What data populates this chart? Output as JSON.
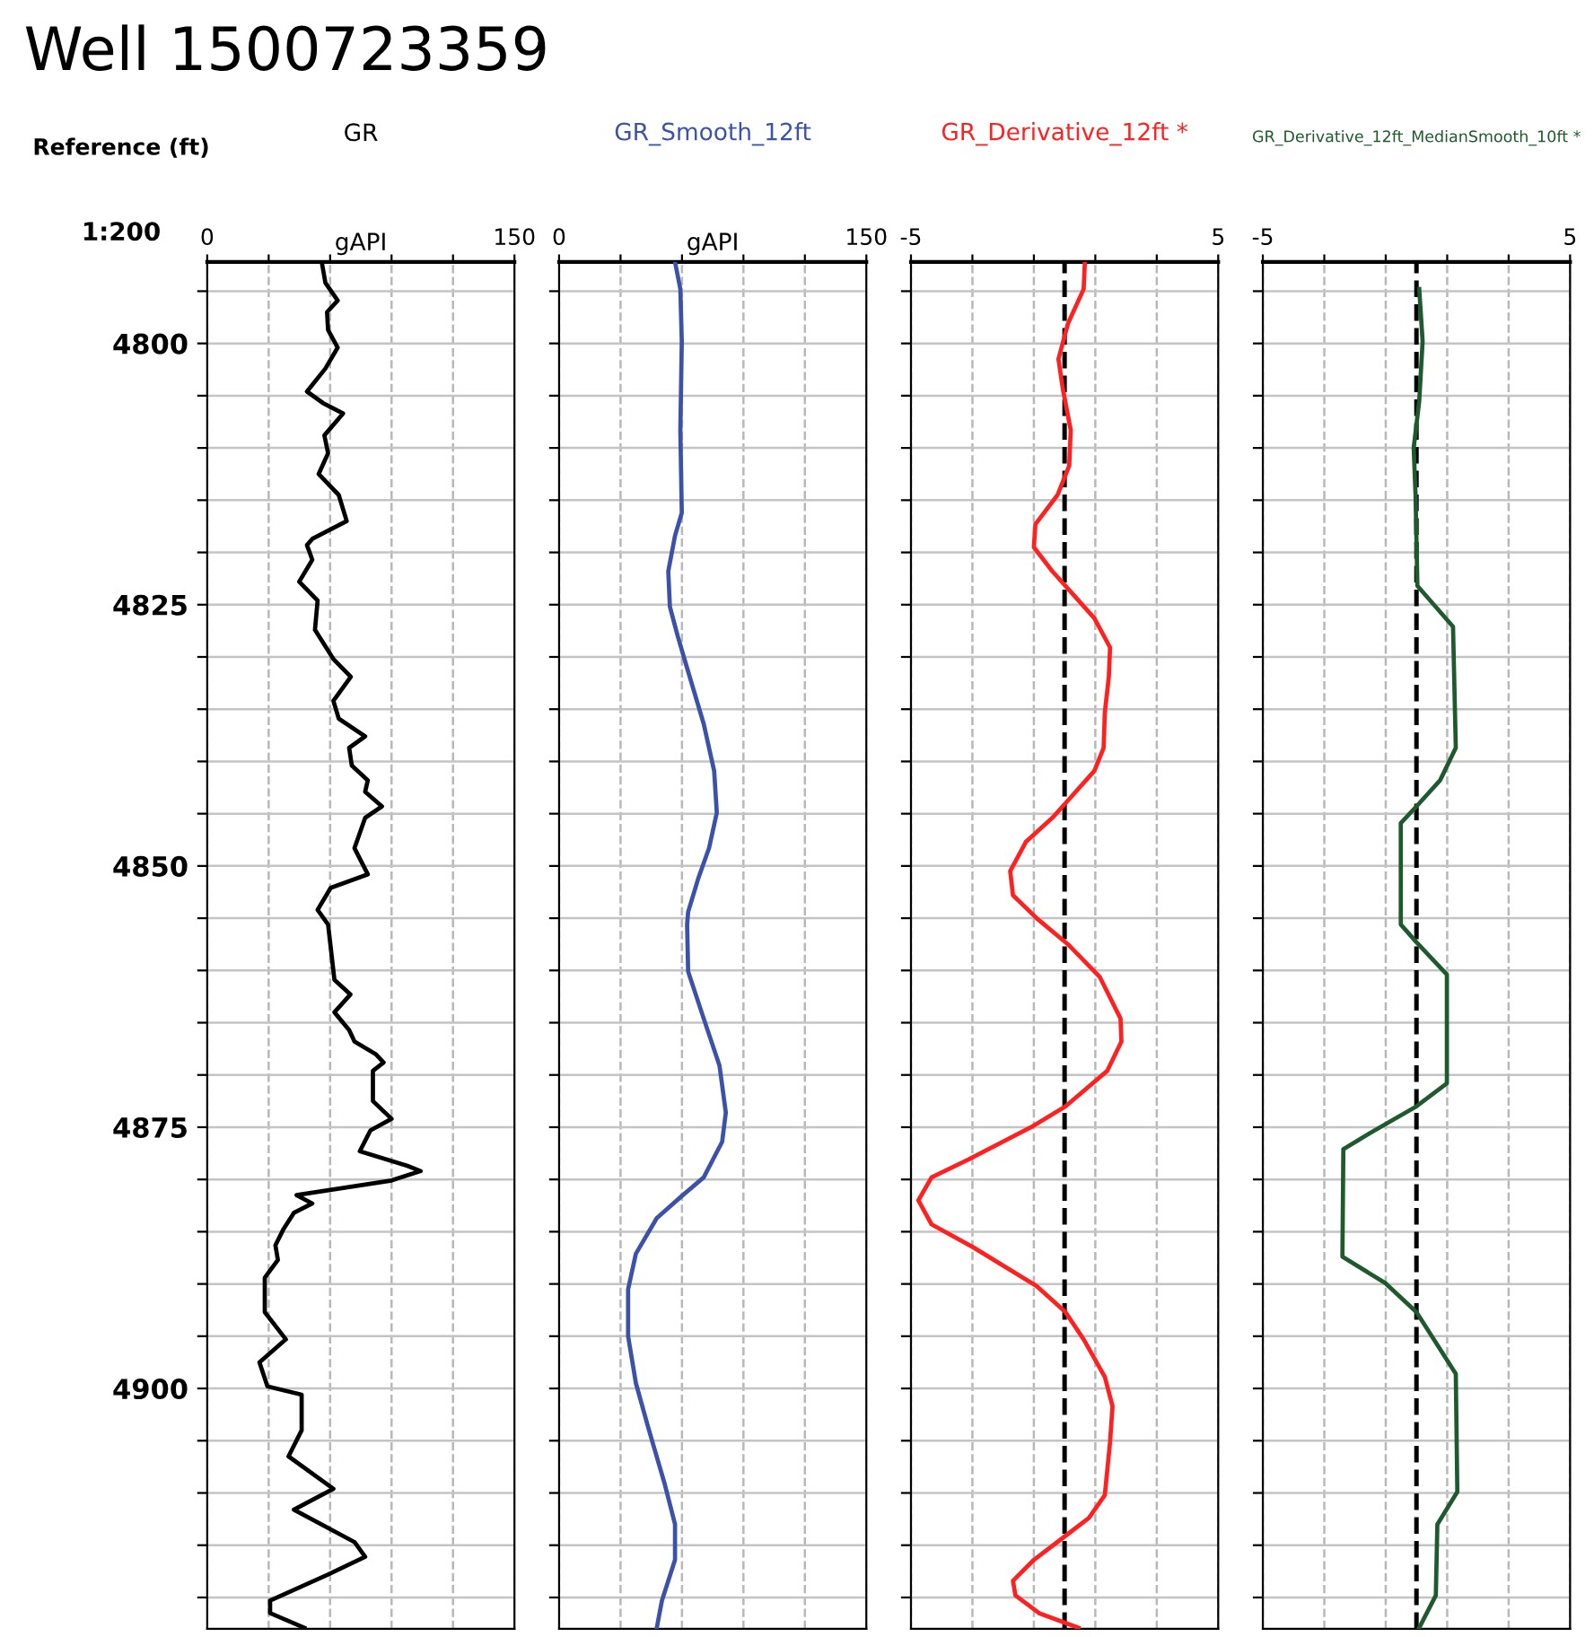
{
  "chart_data": [
    {
      "type": "line",
      "title": "Well 1500723359",
      "ylabel": "Reference (ft)",
      "xlabel": "gAPI",
      "annotations": [
        "1:200"
      ],
      "xlim": [
        0,
        150
      ],
      "xticks": [
        0,
        {
          "value": 30,
          "label": null
        },
        {
          "value": 60,
          "label": null
        },
        {
          "value": 90,
          "label": null
        },
        {
          "value": 120,
          "label": null
        },
        150
      ],
      "ylim": [
        4923,
        4792.2
      ],
      "yticks": [
        {
          "value": 4795,
          "label": null
        },
        4800,
        {
          "value": 4805,
          "label": null
        },
        {
          "value": 4810,
          "label": null
        },
        {
          "value": 4815,
          "label": null
        },
        {
          "value": 4820,
          "label": null
        },
        4825,
        {
          "value": 4830,
          "label": null
        },
        {
          "value": 4835,
          "label": null
        },
        {
          "value": 4840,
          "label": null
        },
        {
          "value": 4845,
          "label": null
        },
        4850,
        {
          "value": 4855,
          "label": null
        },
        {
          "value": 4860,
          "label": null
        },
        {
          "value": 4865,
          "label": null
        },
        {
          "value": 4870,
          "label": null
        },
        4875,
        {
          "value": 4880,
          "label": null
        },
        {
          "value": 4885,
          "label": null
        },
        {
          "value": 4890,
          "label": null
        },
        {
          "value": 4895,
          "label": null
        },
        4900,
        {
          "value": 4905,
          "label": null
        },
        {
          "value": 4910,
          "label": null
        },
        {
          "value": 4915,
          "label": null
        },
        {
          "value": 4920,
          "label": null
        }
      ],
      "grid": true,
      "legend": false,
      "series": [
        {
          "name": "GR",
          "color": "#000000",
          "x": [
            55.9,
            57.7,
            63.7,
            58.5,
            59.0,
            63.7,
            57.7,
            48.7,
            56.5,
            66.3,
            57.2,
            59.0,
            54.4,
            64.2,
            68.1,
            51.3,
            48.7,
            51.3,
            44.9,
            53.9,
            52.6,
            61.6,
            70.1,
            61.6,
            64.2,
            77.1,
            69.3,
            70.6,
            78.4,
            77.1,
            85.3,
            77.1,
            71.9,
            78.4,
            60.3,
            53.9,
            59.0,
            60.3,
            62.1,
            69.9,
            62.1,
            69.3,
            71.9,
            82.2,
            86.1,
            80.9,
            80.9,
            90.0,
            79.7,
            74.5,
            97.7,
            104.2,
            90.0,
            43.6,
            51.3,
            42.3,
            37.1,
            33.3,
            34.5,
            28.1,
            28.1,
            38.4,
            25.5,
            29.4,
            46.1,
            46.1,
            39.7,
            61.6,
            42.3,
            71.9,
            77.1,
            59.0,
            30.7,
            30.7,
            47.4
          ],
          "values": [
            4792.2,
            4794.2,
            4795.9,
            4797.0,
            4798.7,
            4800.4,
            4802.4,
            4804.6,
            4805.7,
            4806.7,
            4808.8,
            4810.5,
            4812.5,
            4814.5,
            4817.0,
            4818.7,
            4819.3,
            4820.7,
            4822.8,
            4824.6,
            4827.4,
            4830.2,
            4831.9,
            4834.2,
            4835.9,
            4837.6,
            4838.7,
            4840.4,
            4841.8,
            4842.9,
            4844.3,
            4845.4,
            4848.3,
            4850.8,
            4852.1,
            4854.2,
            4855.6,
            4857.8,
            4860.9,
            4862.3,
            4864.0,
            4865.7,
            4866.8,
            4868.0,
            4868.8,
            4869.6,
            4872.5,
            4874.2,
            4875.3,
            4877.3,
            4878.7,
            4879.2,
            4880.1,
            4881.5,
            4882.3,
            4883.2,
            4884.8,
            4886.3,
            4887.7,
            4889.4,
            4892.7,
            4895.3,
            4897.5,
            4899.8,
            4900.6,
            4904.0,
            4906.5,
            4909.6,
            4911.6,
            4914.7,
            4916.1,
            4917.8,
            4920.3,
            4921.5,
            4922.9
          ]
        }
      ]
    },
    {
      "type": "line",
      "xlabel": "gAPI",
      "tick_labels": "x",
      "xlim": [
        0,
        150
      ],
      "xticks": [
        0,
        {
          "value": 30,
          "label": null
        },
        {
          "value": 60,
          "label": null
        },
        {
          "value": 90,
          "label": null
        },
        {
          "value": 120,
          "label": null
        },
        150
      ],
      "ylim": [
        4923,
        4792.2
      ],
      "yticks": [
        {
          "value": 4795,
          "label": null
        },
        4800,
        {
          "value": 4805,
          "label": null
        },
        {
          "value": 4810,
          "label": null
        },
        {
          "value": 4815,
          "label": null
        },
        {
          "value": 4820,
          "label": null
        },
        4825,
        {
          "value": 4830,
          "label": null
        },
        {
          "value": 4835,
          "label": null
        },
        {
          "value": 4840,
          "label": null
        },
        {
          "value": 4845,
          "label": null
        },
        4850,
        {
          "value": 4855,
          "label": null
        },
        {
          "value": 4860,
          "label": null
        },
        {
          "value": 4865,
          "label": null
        },
        {
          "value": 4870,
          "label": null
        },
        4875,
        {
          "value": 4880,
          "label": null
        },
        {
          "value": 4885,
          "label": null
        },
        {
          "value": 4890,
          "label": null
        },
        {
          "value": 4895,
          "label": null
        },
        4900,
        {
          "value": 4905,
          "label": null
        },
        {
          "value": 4910,
          "label": null
        },
        {
          "value": 4915,
          "label": null
        },
        {
          "value": 4920,
          "label": null
        }
      ],
      "grid": true,
      "legend": false,
      "series": [
        {
          "name": "GR_Smooth_12ft",
          "color": "#3b52a8",
          "x": [
            56.6,
            59.2,
            59.9,
            59.2,
            59.9,
            56.6,
            53.3,
            54.1,
            57.9,
            63.0,
            70.6,
            75.7,
            77.0,
            73.2,
            68.1,
            63.0,
            62.5,
            63.0,
            70.6,
            78.3,
            81.4,
            79.6,
            70.6,
            60.4,
            47.7,
            37.5,
            33.7,
            33.7,
            37.5,
            43.9,
            51.5,
            56.6,
            56.6,
            50.2,
            47.7
          ],
          "values": [
            4792.2,
            4794.8,
            4799.8,
            4808.3,
            4816.2,
            4818.4,
            4821.8,
            4825.2,
            4828.0,
            4831.4,
            4836.4,
            4840.9,
            4844.9,
            4848.3,
            4851.1,
            4854.4,
            4855.6,
            4860.1,
            4864.6,
            4869.1,
            4873.6,
            4876.4,
            4879.8,
            4881.5,
            4883.7,
            4887.1,
            4890.5,
            4895.0,
            4899.5,
            4904.0,
            4909.1,
            4913.0,
            4916.4,
            4920.3,
            4922.9
          ]
        }
      ]
    },
    {
      "type": "line",
      "tick_labels": "x",
      "xlim": [
        -5,
        5
      ],
      "xticks": [
        -5,
        {
          "value": -3,
          "label": null
        },
        {
          "value": -1,
          "label": null
        },
        {
          "value": 1,
          "label": null
        },
        {
          "value": 3,
          "label": null
        },
        5
      ],
      "ylim": [
        4923,
        4792.2
      ],
      "yticks": [
        {
          "value": 4795,
          "label": null
        },
        4800,
        {
          "value": 4805,
          "label": null
        },
        {
          "value": 4810,
          "label": null
        },
        {
          "value": 4815,
          "label": null
        },
        {
          "value": 4820,
          "label": null
        },
        4825,
        {
          "value": 4830,
          "label": null
        },
        {
          "value": 4835,
          "label": null
        },
        {
          "value": 4840,
          "label": null
        },
        {
          "value": 4845,
          "label": null
        },
        4850,
        {
          "value": 4855,
          "label": null
        },
        {
          "value": 4860,
          "label": null
        },
        {
          "value": 4865,
          "label": null
        },
        {
          "value": 4870,
          "label": null
        },
        4875,
        {
          "value": 4880,
          "label": null
        },
        {
          "value": 4885,
          "label": null
        },
        {
          "value": 4890,
          "label": null
        },
        {
          "value": 4895,
          "label": null
        },
        4900,
        {
          "value": 4905,
          "label": null
        },
        {
          "value": 4910,
          "label": null
        },
        {
          "value": 4915,
          "label": null
        },
        {
          "value": 4920,
          "label": null
        }
      ],
      "grid": true,
      "legend": false,
      "ref_lines": [
        {
          "axis": "x",
          "value": 0,
          "color": "#000000",
          "line_style": "dashed"
        }
      ],
      "series": [
        {
          "name": "GR_Derivative_12ft *",
          "color": "#ff2020",
          "x": [
            0.66,
            0.62,
            0.11,
            -0.2,
            -0.06,
            0.2,
            0.15,
            -0.23,
            -0.95,
            -1.0,
            -0.4,
            0.03,
            0.97,
            1.48,
            1.44,
            1.31,
            1.27,
            0.97,
            0.03,
            -0.4,
            -1.26,
            -1.77,
            -1.68,
            -0.91,
            0.11,
            1.14,
            1.82,
            1.85,
            1.39,
            0.03,
            -1.09,
            -3.14,
            -4.33,
            -4.76,
            -4.33,
            -2.97,
            -0.91,
            0.03,
            0.62,
            1.31,
            1.56,
            1.48,
            1.31,
            0.79,
            0.03,
            -1.0,
            -1.68,
            -1.6,
            -0.83,
            0.45
          ],
          "values": [
            4792.2,
            4794.8,
            4798.1,
            4801.5,
            4804.3,
            4808.3,
            4811.7,
            4814.5,
            4817.3,
            4819.5,
            4821.8,
            4823.2,
            4826.3,
            4829.1,
            4831.9,
            4835.3,
            4838.7,
            4840.9,
            4844.0,
            4845.4,
            4847.7,
            4850.5,
            4852.8,
            4855.0,
            4857.5,
            4860.6,
            4864.6,
            4866.8,
            4869.6,
            4873.0,
            4875.0,
            4878.1,
            4879.8,
            4882.0,
            4884.3,
            4886.5,
            4890.2,
            4892.7,
            4895.3,
            4898.9,
            4901.7,
            4905.1,
            4910.2,
            4912.4,
            4914.1,
            4916.4,
            4918.4,
            4919.8,
            4921.5,
            4922.9
          ]
        }
      ]
    },
    {
      "type": "line",
      "tick_labels": "x",
      "xlim": [
        -5,
        5
      ],
      "xticks": [
        -5,
        {
          "value": -3,
          "label": null
        },
        {
          "value": -1,
          "label": null
        },
        {
          "value": 1,
          "label": null
        },
        {
          "value": 3,
          "label": null
        },
        5
      ],
      "ylim": [
        4923,
        4792.2
      ],
      "yticks": [
        {
          "value": 4795,
          "label": null
        },
        4800,
        {
          "value": 4805,
          "label": null
        },
        {
          "value": 4810,
          "label": null
        },
        {
          "value": 4815,
          "label": null
        },
        {
          "value": 4820,
          "label": null
        },
        4825,
        {
          "value": 4830,
          "label": null
        },
        {
          "value": 4835,
          "label": null
        },
        {
          "value": 4840,
          "label": null
        },
        {
          "value": 4845,
          "label": null
        },
        4850,
        {
          "value": 4855,
          "label": null
        },
        {
          "value": 4860,
          "label": null
        },
        {
          "value": 4865,
          "label": null
        },
        {
          "value": 4870,
          "label": null
        },
        4875,
        {
          "value": 4880,
          "label": null
        },
        {
          "value": 4885,
          "label": null
        },
        {
          "value": 4890,
          "label": null
        },
        {
          "value": 4895,
          "label": null
        },
        4900,
        {
          "value": 4905,
          "label": null
        },
        {
          "value": 4910,
          "label": null
        },
        {
          "value": 4915,
          "label": null
        },
        {
          "value": 4920,
          "label": null
        }
      ],
      "grid": true,
      "legend": false,
      "ref_lines": [
        {
          "axis": "x",
          "value": 0,
          "color": "#000000",
          "line_style": "dashed"
        }
      ],
      "series": [
        {
          "name": "GR_Derivative_12ft_MedianSmooth_10ft *",
          "color": "#1e5a2e",
          "x": [
            0.09,
            0.2,
            0.09,
            -0.09,
            -0.03,
            0.03,
            1.19,
            1.28,
            0.77,
            0,
            -0.51,
            -0.51,
            0,
            0.99,
            0.99,
            0,
            -1.36,
            -2.38,
            -2.41,
            -1.02,
            0,
            1.28,
            1.33,
            0.68,
            0.63,
            0.09
          ],
          "values": [
            4794.8,
            4799.8,
            4805.5,
            4810.0,
            4814.5,
            4823.2,
            4827.1,
            4838.7,
            4841.8,
            4844.3,
            4845.9,
            4855.6,
            4857.3,
            4860.4,
            4870.8,
            4873.0,
            4875.3,
            4877.1,
            4887.4,
            4889.9,
            4892.7,
            4898.6,
            4909.9,
            4913.0,
            4919.8,
            4922.9
          ]
        }
      ]
    }
  ]
}
